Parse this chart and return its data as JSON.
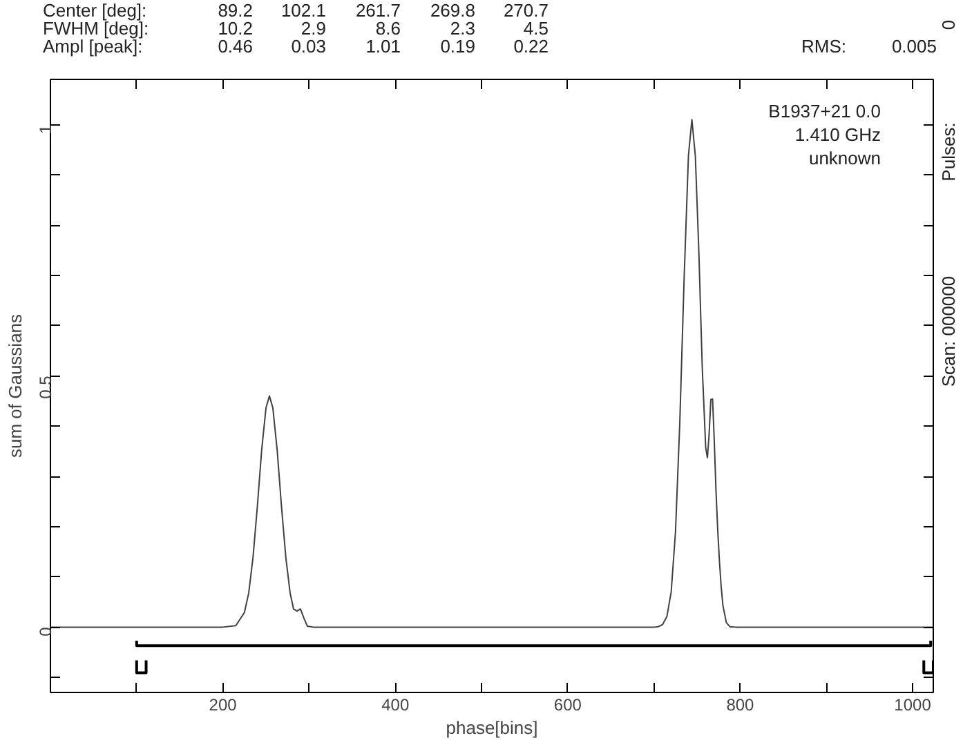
{
  "chart_data": {
    "type": "line",
    "xlabel": "phase[bins]",
    "ylabel": "sum of Gaussians",
    "annotations": [
      "Center [deg]:",
      "89.2",
      "102.1",
      "261.7",
      "269.8",
      "270.7",
      "FWHM  [deg]:",
      "10.2",
      "2.9",
      "8.6",
      "2.3",
      "4.5",
      "Ampl  [peak]:",
      "0.46",
      "0.03",
      "1.01",
      "0.19",
      "0.22",
      "RMS:",
      "0.005",
      "B1937+21 0.0",
      "1.410 GHz",
      "unknown",
      "Scan: 000000",
      "Pulses:",
      "0"
    ],
    "series": [
      {
        "color": "#404040",
        "x": [
          0,
          200,
          215,
          225,
          230,
          235,
          240,
          245,
          250,
          254,
          258,
          263,
          268,
          273,
          278,
          282,
          286,
          290,
          294,
          298,
          305,
          400,
          600,
          700,
          705,
          710,
          715,
          720,
          725,
          730,
          735,
          740,
          744,
          748,
          752,
          756,
          760,
          762,
          764,
          766,
          768,
          770,
          772,
          774,
          776,
          778,
          780,
          784,
          788,
          795,
          900,
          1024
        ],
        "values": [
          0,
          0,
          0.003,
          0.029,
          0.068,
          0.139,
          0.24,
          0.352,
          0.436,
          0.46,
          0.436,
          0.352,
          0.24,
          0.139,
          0.068,
          0.036,
          0.032,
          0.036,
          0.018,
          0.002,
          0,
          0,
          0,
          0,
          0.001,
          0.005,
          0.021,
          0.07,
          0.19,
          0.408,
          0.694,
          0.938,
          1.01,
          0.938,
          0.751,
          0.518,
          0.358,
          0.337,
          0.384,
          0.453,
          0.454,
          0.369,
          0.27,
          0.192,
          0.13,
          0.08,
          0.043,
          0.009,
          0.001,
          0,
          0,
          0
        ]
      },
      {
        "color": "#000000",
        "x": [
          100,
          100,
          1021,
          1021
        ],
        "values": [
          -0.027,
          -0.037,
          -0.037,
          -0.027
        ]
      },
      {
        "color": "#000000",
        "x": [
          100,
          100,
          111,
          111,
          112,
          1013,
          1013,
          1024,
          1024
        ],
        "values": [
          -0.066,
          -0.091,
          -0.091,
          -0.066,
          null,
          -0.066,
          -0.091,
          -0.091,
          -0.066
        ]
      }
    ],
    "xlim": [
      0,
      1024
    ],
    "ylim": [
      -0.13,
      1.09
    ],
    "xticks": [
      {
        "value": 100,
        "label": null
      },
      200,
      {
        "value": 300,
        "label": null
      },
      400,
      {
        "value": 500,
        "label": null
      },
      600,
      {
        "value": 700,
        "label": null
      },
      800,
      {
        "value": 900,
        "label": null
      },
      1000
    ],
    "yticks": [
      {
        "value": -0.1,
        "label": null
      },
      0,
      {
        "value": 0.1,
        "label": null
      },
      {
        "value": 0.2,
        "label": null
      },
      {
        "value": 0.3,
        "label": null
      },
      {
        "value": 0.4,
        "label": null
      },
      0.5,
      {
        "value": 0.6,
        "label": null
      },
      {
        "value": 0.7,
        "label": null
      },
      {
        "value": 0.8,
        "label": null
      },
      {
        "value": 0.9,
        "label": null
      },
      1
    ],
    "grid": false
  }
}
